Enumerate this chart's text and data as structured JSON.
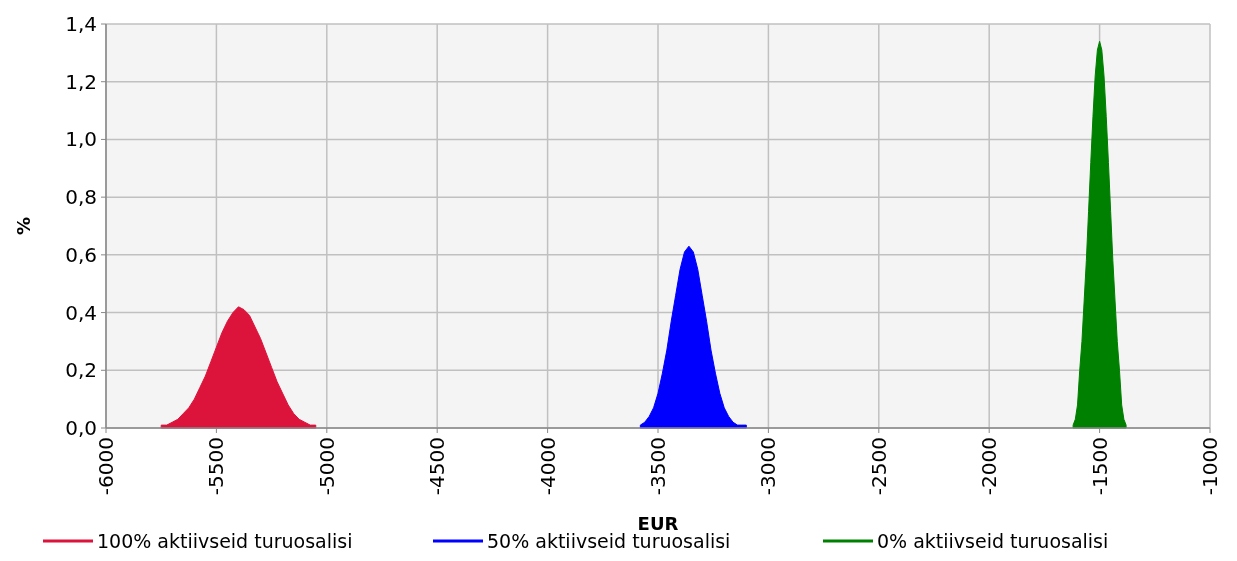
{
  "chart_data": {
    "type": "area",
    "xlabel": "EUR",
    "ylabel": "%",
    "xlim": [
      -6000,
      -1000
    ],
    "xticks": [
      -6000,
      -5500,
      -5000,
      -4500,
      -4000,
      -3500,
      -3000,
      -2500,
      -2000,
      -1500,
      -1000
    ],
    "ylim": [
      0,
      1.4
    ],
    "yticks": [
      {
        "value": 0,
        "label": "0,0"
      },
      {
        "value": 0.2,
        "label": "0,2"
      },
      {
        "value": 0.4,
        "label": "0,4"
      },
      {
        "value": 0.6,
        "label": "0,6"
      },
      {
        "value": 0.8,
        "label": "0,8"
      },
      {
        "value": 1,
        "label": "1,0"
      },
      {
        "value": 1.2,
        "label": "1,2"
      },
      {
        "value": 1.4,
        "label": "1,4"
      }
    ],
    "grid": true,
    "legend": "bottom",
    "series": [
      {
        "name": "100% aktiivseid turuosalisi",
        "color": "#dc143c",
        "x": [
          -5750,
          -5725,
          -5700,
          -5675,
          -5650,
          -5625,
          -5600,
          -5575,
          -5550,
          -5525,
          -5500,
          -5475,
          -5450,
          -5425,
          -5400,
          -5375,
          -5350,
          -5325,
          -5300,
          -5275,
          -5250,
          -5225,
          -5200,
          -5175,
          -5150,
          -5125,
          -5100,
          -5075,
          -5050
        ],
        "values": [
          0.01,
          0.01,
          0.02,
          0.03,
          0.05,
          0.07,
          0.1,
          0.14,
          0.18,
          0.23,
          0.28,
          0.33,
          0.37,
          0.4,
          0.42,
          0.41,
          0.39,
          0.35,
          0.31,
          0.26,
          0.21,
          0.16,
          0.12,
          0.08,
          0.05,
          0.03,
          0.02,
          0.01,
          0.01
        ]
      },
      {
        "name": "50% aktiivseid turuosalisi",
        "color": "#0000ff",
        "x": [
          -3580,
          -3560,
          -3540,
          -3520,
          -3500,
          -3480,
          -3460,
          -3440,
          -3420,
          -3400,
          -3380,
          -3360,
          -3340,
          -3320,
          -3300,
          -3280,
          -3260,
          -3240,
          -3220,
          -3200,
          -3180,
          -3160,
          -3140,
          -3120,
          -3100
        ],
        "values": [
          0.01,
          0.02,
          0.04,
          0.07,
          0.12,
          0.19,
          0.27,
          0.37,
          0.46,
          0.55,
          0.61,
          0.63,
          0.61,
          0.55,
          0.46,
          0.37,
          0.27,
          0.19,
          0.12,
          0.07,
          0.04,
          0.02,
          0.01,
          0.01,
          0.01
        ]
      },
      {
        "name": "0% aktiivseid turuosalisi",
        "color": "#008000",
        "x": [
          -1620,
          -1610,
          -1600,
          -1590,
          -1580,
          -1570,
          -1560,
          -1550,
          -1540,
          -1530,
          -1520,
          -1510,
          -1500,
          -1490,
          -1480,
          -1470,
          -1460,
          -1450,
          -1440,
          -1430,
          -1420,
          -1410,
          -1400,
          -1390,
          -1380
        ],
        "values": [
          0.01,
          0.03,
          0.08,
          0.2,
          0.3,
          0.44,
          0.58,
          0.75,
          0.92,
          1.08,
          1.22,
          1.31,
          1.34,
          1.31,
          1.22,
          1.08,
          0.92,
          0.75,
          0.58,
          0.44,
          0.3,
          0.2,
          0.08,
          0.03,
          0.01
        ]
      }
    ]
  }
}
